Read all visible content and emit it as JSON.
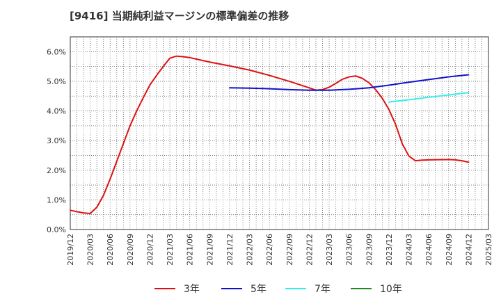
{
  "chart_data": {
    "type": "line",
    "title": "[9416]  当期純利益マージンの標準偏差の推移",
    "xlabel": "",
    "ylabel": "",
    "ylim": [
      0,
      6.5
    ],
    "yticks": [
      "0.0%",
      "1.0%",
      "2.0%",
      "3.0%",
      "4.0%",
      "5.0%",
      "6.0%"
    ],
    "x_tick_labels": [
      "2019/12",
      "2020/03",
      "2020/06",
      "2020/09",
      "2020/12",
      "2021/03",
      "2021/06",
      "2021/09",
      "2021/12",
      "2022/03",
      "2022/06",
      "2022/09",
      "2022/12",
      "2023/03",
      "2023/06",
      "2023/09",
      "2023/12",
      "2024/03",
      "2024/06",
      "2024/09",
      "2024/12",
      "2025/03"
    ],
    "grid": true,
    "legend_position": "bottom",
    "series": [
      {
        "name": "3年",
        "color": "#dd1111",
        "x": [
          "2019/12",
          "2020/01",
          "2020/02",
          "2020/03",
          "2020/04",
          "2020/05",
          "2020/06",
          "2020/07",
          "2020/08",
          "2020/09",
          "2020/10",
          "2020/11",
          "2020/12",
          "2021/01",
          "2021/02",
          "2021/03",
          "2021/04",
          "2021/05",
          "2021/06",
          "2021/09",
          "2021/12",
          "2022/03",
          "2022/06",
          "2022/09",
          "2022/12",
          "2023/01",
          "2023/02",
          "2023/03",
          "2023/04",
          "2023/05",
          "2023/06",
          "2023/07",
          "2023/08",
          "2023/09",
          "2023/10",
          "2023/11",
          "2023/12",
          "2024/01",
          "2024/02",
          "2024/03",
          "2024/04",
          "2024/05",
          "2024/06",
          "2024/09",
          "2024/10",
          "2024/11",
          "2024/12"
        ],
        "values": [
          0.65,
          0.6,
          0.56,
          0.54,
          0.75,
          1.15,
          1.7,
          2.3,
          2.9,
          3.5,
          4.0,
          4.45,
          4.88,
          5.2,
          5.5,
          5.78,
          5.85,
          5.83,
          5.8,
          5.65,
          5.52,
          5.38,
          5.2,
          5.0,
          4.78,
          4.7,
          4.72,
          4.8,
          4.93,
          5.07,
          5.15,
          5.18,
          5.1,
          4.95,
          4.72,
          4.43,
          4.05,
          3.55,
          2.9,
          2.48,
          2.32,
          2.34,
          2.35,
          2.36,
          2.35,
          2.32,
          2.27
        ]
      },
      {
        "name": "5年",
        "color": "#1111cc",
        "x": [
          "2021/12",
          "2022/03",
          "2022/06",
          "2022/09",
          "2022/12",
          "2023/03",
          "2023/06",
          "2023/09",
          "2023/12",
          "2024/03",
          "2024/06",
          "2024/09",
          "2024/12"
        ],
        "values": [
          4.78,
          4.77,
          4.75,
          4.72,
          4.7,
          4.7,
          4.73,
          4.78,
          4.87,
          4.97,
          5.06,
          5.15,
          5.22
        ]
      },
      {
        "name": "7年",
        "color": "#33eeee",
        "x": [
          "2023/12",
          "2024/03",
          "2024/06",
          "2024/09",
          "2024/12"
        ],
        "values": [
          4.3,
          4.38,
          4.46,
          4.54,
          4.62
        ]
      },
      {
        "name": "10年",
        "color": "#228822",
        "x": [],
        "values": []
      }
    ]
  }
}
